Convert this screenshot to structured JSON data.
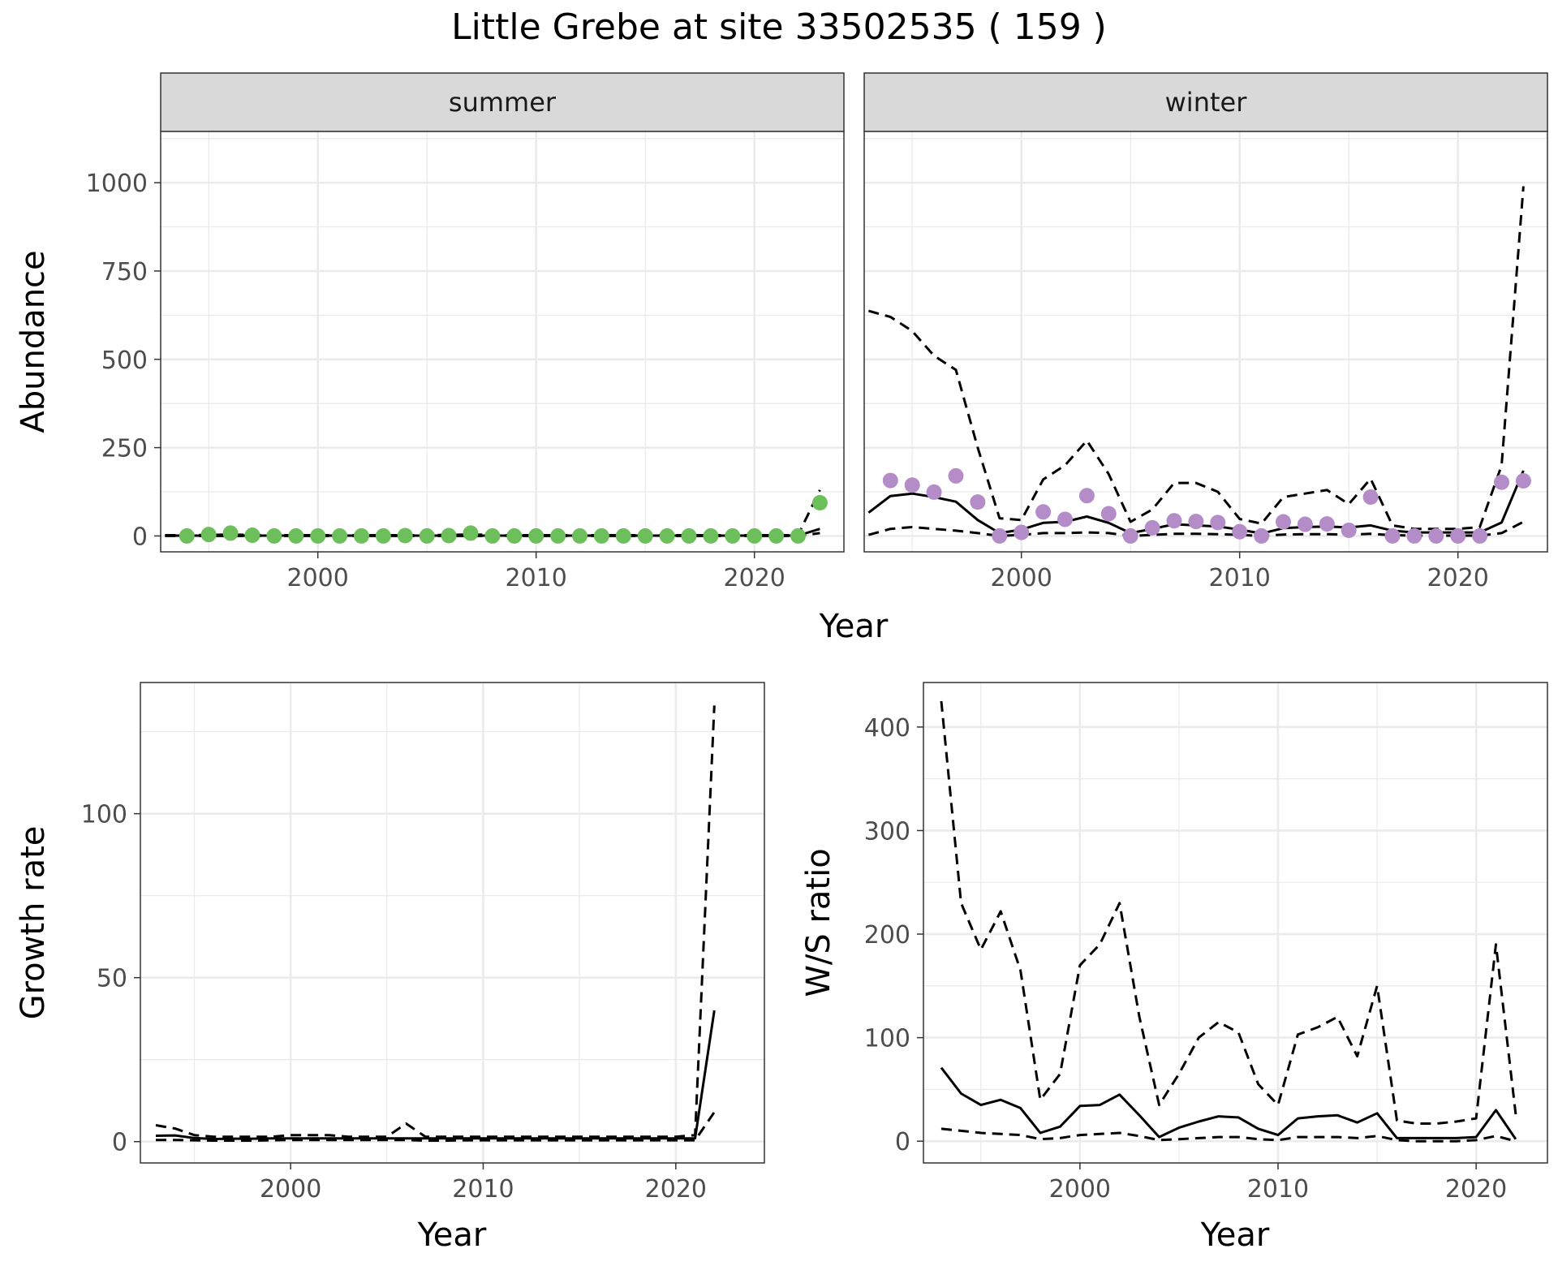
{
  "title": "Little Grebe at site 33502535 ( 159 )",
  "chart_data": [
    {
      "type": "line",
      "facet": "summer",
      "xlabel": "",
      "ylabel": "Abundance",
      "xlim": [
        1992.8,
        2024.1
      ],
      "ylim": [
        -45,
        1145
      ],
      "xticks": [
        2000,
        2010,
        2020
      ],
      "yticks": [
        0,
        250,
        500,
        750,
        1000
      ],
      "grid": true,
      "point_color": "#6dbf5b",
      "series": [
        {
          "style": "solid",
          "x": [
            1993,
            1994,
            1995,
            1996,
            1997,
            1998,
            1999,
            2000,
            2001,
            2002,
            2003,
            2004,
            2005,
            2006,
            2007,
            2008,
            2009,
            2010,
            2011,
            2012,
            2013,
            2014,
            2015,
            2016,
            2017,
            2018,
            2019,
            2020,
            2021,
            2022,
            2023
          ],
          "y": [
            1,
            1,
            1,
            1,
            1,
            1,
            1,
            1,
            1,
            1,
            1,
            1,
            1,
            1,
            1,
            1,
            1,
            1,
            1,
            1,
            1,
            1,
            1,
            1,
            1,
            1,
            1,
            1,
            1,
            1,
            20
          ]
        },
        {
          "style": "dashed",
          "x": [
            1993,
            1994,
            1995,
            1996,
            1997,
            1998,
            1999,
            2000,
            2001,
            2002,
            2003,
            2004,
            2005,
            2006,
            2007,
            2008,
            2009,
            2010,
            2011,
            2012,
            2013,
            2014,
            2015,
            2016,
            2017,
            2018,
            2019,
            2020,
            2021,
            2022,
            2023
          ],
          "y": [
            2,
            2,
            3,
            4,
            3,
            2,
            2,
            2,
            2,
            2,
            2,
            2,
            2,
            3,
            4,
            3,
            2,
            2,
            2,
            2,
            2,
            2,
            2,
            2,
            2,
            2,
            2,
            2,
            2,
            2,
            130
          ]
        },
        {
          "style": "dashed",
          "x": [
            1993,
            1994,
            1995,
            1996,
            1997,
            1998,
            1999,
            2000,
            2001,
            2002,
            2003,
            2004,
            2005,
            2006,
            2007,
            2008,
            2009,
            2010,
            2011,
            2012,
            2013,
            2014,
            2015,
            2016,
            2017,
            2018,
            2019,
            2020,
            2021,
            2022,
            2023
          ],
          "y": [
            0,
            0,
            0,
            0,
            0,
            0,
            0,
            0,
            0,
            0,
            0,
            0,
            0,
            0,
            0,
            0,
            0,
            0,
            0,
            0,
            0,
            0,
            0,
            0,
            0,
            0,
            0,
            0,
            0,
            0,
            8
          ]
        }
      ],
      "points": {
        "x": [
          1994,
          1995,
          1996,
          1997,
          1998,
          1999,
          2000,
          2001,
          2002,
          2003,
          2004,
          2005,
          2006,
          2007,
          2008,
          2009,
          2010,
          2011,
          2012,
          2013,
          2014,
          2015,
          2016,
          2017,
          2018,
          2019,
          2020,
          2021,
          2022,
          2023
        ],
        "y": [
          0,
          4,
          8,
          2,
          0,
          0,
          0,
          0,
          0,
          0,
          1,
          0,
          1,
          8,
          0,
          0,
          0,
          0,
          0,
          0,
          0,
          0,
          0,
          0,
          0,
          0,
          0,
          0,
          0,
          94
        ]
      }
    },
    {
      "type": "line",
      "facet": "winter",
      "xlabel": "",
      "ylabel": "",
      "xlim": [
        1992.8,
        2024.1
      ],
      "ylim": [
        -45,
        1145
      ],
      "xticks": [
        2000,
        2010,
        2020
      ],
      "yticks": [
        0,
        250,
        500,
        750,
        1000
      ],
      "grid": true,
      "point_color": "#b38cc8",
      "series": [
        {
          "style": "solid",
          "x": [
            1993,
            1994,
            1995,
            1996,
            1997,
            1998,
            1999,
            2000,
            2001,
            2002,
            2003,
            2004,
            2005,
            2006,
            2007,
            2008,
            2009,
            2010,
            2011,
            2012,
            2013,
            2014,
            2015,
            2016,
            2017,
            2018,
            2019,
            2020,
            2021,
            2022,
            2023
          ],
          "y": [
            66,
            113,
            120,
            110,
            97,
            45,
            8,
            18,
            37,
            40,
            55,
            37,
            8,
            20,
            33,
            30,
            27,
            18,
            7,
            22,
            25,
            27,
            24,
            30,
            15,
            10,
            10,
            10,
            10,
            38,
            185
          ]
        },
        {
          "style": "dashed",
          "x": [
            1993,
            1994,
            1995,
            1996,
            1997,
            1998,
            1999,
            2000,
            2001,
            2002,
            2003,
            2004,
            2005,
            2006,
            2007,
            2008,
            2009,
            2010,
            2011,
            2012,
            2013,
            2014,
            2015,
            2016,
            2017,
            2018,
            2019,
            2020,
            2021,
            2022,
            2023
          ],
          "y": [
            637,
            620,
            580,
            510,
            470,
            250,
            50,
            45,
            160,
            200,
            270,
            175,
            40,
            75,
            150,
            150,
            125,
            48,
            35,
            110,
            120,
            130,
            90,
            162,
            30,
            20,
            20,
            20,
            25,
            200,
            990
          ]
        },
        {
          "style": "dashed",
          "x": [
            1993,
            1994,
            1995,
            1996,
            1997,
            1998,
            1999,
            2000,
            2001,
            2002,
            2003,
            2004,
            2005,
            2006,
            2007,
            2008,
            2009,
            2010,
            2011,
            2012,
            2013,
            2014,
            2015,
            2016,
            2017,
            2018,
            2019,
            2020,
            2021,
            2022,
            2023
          ],
          "y": [
            3,
            20,
            25,
            20,
            15,
            8,
            0,
            3,
            8,
            8,
            10,
            8,
            0,
            3,
            6,
            6,
            5,
            3,
            0,
            4,
            5,
            5,
            4,
            6,
            2,
            1,
            1,
            1,
            1,
            8,
            40
          ]
        }
      ],
      "points": {
        "x": [
          1994,
          1995,
          1996,
          1997,
          1998,
          1999,
          2000,
          2001,
          2002,
          2003,
          2004,
          2005,
          2006,
          2007,
          2008,
          2009,
          2010,
          2011,
          2012,
          2013,
          2014,
          2015,
          2016,
          2017,
          2018,
          2019,
          2020,
          2021,
          2022,
          2023
        ],
        "y": [
          157,
          144,
          124,
          170,
          96,
          0,
          10,
          68,
          47,
          114,
          63,
          0,
          23,
          43,
          41,
          38,
          12,
          0,
          40,
          33,
          34,
          16,
          110,
          0,
          0,
          0,
          0,
          0,
          152,
          156
        ]
      }
    },
    {
      "type": "line",
      "xlabel": "Year",
      "ylabel": "Growth rate",
      "xlim": [
        1992.2,
        2024.6
      ],
      "ylim": [
        -6.5,
        140
      ],
      "xticks": [
        2000,
        2010,
        2020
      ],
      "yticks": [
        0,
        50,
        100
      ],
      "grid": true,
      "series": [
        {
          "style": "solid",
          "x": [
            1993,
            1994,
            1995,
            1996,
            1997,
            1998,
            1999,
            2000,
            2001,
            2002,
            2003,
            2004,
            2005,
            2006,
            2007,
            2008,
            2009,
            2010,
            2011,
            2012,
            2013,
            2014,
            2015,
            2016,
            2017,
            2018,
            2019,
            2020,
            2021,
            2022
          ],
          "y": [
            1.8,
            1.9,
            1.1,
            0.8,
            0.9,
            0.9,
            1,
            1,
            1,
            1,
            1,
            1,
            1,
            1,
            1,
            1,
            1,
            1,
            1,
            1,
            1,
            1,
            1,
            1,
            1,
            1,
            1,
            1,
            1,
            40
          ]
        },
        {
          "style": "dashed",
          "x": [
            1993,
            1994,
            1995,
            1996,
            1997,
            1998,
            1999,
            2000,
            2001,
            2002,
            2003,
            2004,
            2005,
            2006,
            2007,
            2008,
            2009,
            2010,
            2011,
            2012,
            2013,
            2014,
            2015,
            2016,
            2017,
            2018,
            2019,
            2020,
            2021,
            2022
          ],
          "y": [
            5,
            4,
            2,
            1.5,
            1.5,
            1.5,
            1.5,
            2,
            2,
            2,
            1.5,
            1.5,
            1.5,
            5.5,
            1.5,
            1.5,
            1.5,
            1.5,
            1.5,
            1.5,
            1.5,
            1.5,
            1.5,
            1.5,
            1.5,
            1.5,
            1.5,
            1.5,
            2,
            133
          ]
        },
        {
          "style": "dashed",
          "x": [
            1993,
            1994,
            1995,
            1996,
            1997,
            1998,
            1999,
            2000,
            2001,
            2002,
            2003,
            2004,
            2005,
            2006,
            2007,
            2008,
            2009,
            2010,
            2011,
            2012,
            2013,
            2014,
            2015,
            2016,
            2017,
            2018,
            2019,
            2020,
            2021,
            2022
          ],
          "y": [
            0.5,
            0.5,
            0.4,
            0.3,
            0.3,
            0.3,
            0.4,
            0.5,
            0.5,
            0.5,
            0.5,
            0.5,
            0.5,
            0.5,
            0.3,
            0.3,
            0.4,
            0.4,
            0.4,
            0.4,
            0.4,
            0.4,
            0.4,
            0.4,
            0.4,
            0.4,
            0.4,
            0.4,
            0.4,
            9
          ]
        }
      ]
    },
    {
      "type": "line",
      "xlabel": "Year",
      "ylabel": "W/S ratio",
      "xlim": [
        1992.1,
        2023.6
      ],
      "ylim": [
        -21,
        443
      ],
      "xticks": [
        2000,
        2010,
        2020
      ],
      "yticks": [
        0,
        100,
        200,
        300,
        400
      ],
      "grid": true,
      "series": [
        {
          "style": "solid",
          "x": [
            1993,
            1994,
            1995,
            1996,
            1997,
            1998,
            1999,
            2000,
            2001,
            2002,
            2003,
            2004,
            2005,
            2006,
            2007,
            2008,
            2009,
            2010,
            2011,
            2012,
            2013,
            2014,
            2015,
            2016,
            2017,
            2018,
            2019,
            2020,
            2021,
            2022
          ],
          "y": [
            71,
            46,
            35,
            40,
            32,
            8,
            14,
            34,
            35,
            45,
            25,
            4,
            13,
            19,
            24,
            23,
            12,
            6,
            22,
            24,
            25,
            18,
            27,
            3,
            3,
            3,
            3,
            4,
            30,
            2
          ]
        },
        {
          "style": "dashed",
          "x": [
            1993,
            1994,
            1995,
            1996,
            1997,
            1998,
            1999,
            2000,
            2001,
            2002,
            2003,
            2004,
            2005,
            2006,
            2007,
            2008,
            2009,
            2010,
            2011,
            2012,
            2013,
            2014,
            2015,
            2016,
            2017,
            2018,
            2019,
            2020,
            2021,
            2022
          ],
          "y": [
            425,
            230,
            185,
            222,
            165,
            40,
            65,
            170,
            190,
            230,
            120,
            35,
            65,
            100,
            115,
            105,
            55,
            35,
            103,
            110,
            120,
            82,
            150,
            20,
            17,
            17,
            19,
            22,
            190,
            26
          ]
        },
        {
          "style": "dashed",
          "x": [
            1993,
            1994,
            1995,
            1996,
            1997,
            1998,
            1999,
            2000,
            2001,
            2002,
            2003,
            2004,
            2005,
            2006,
            2007,
            2008,
            2009,
            2010,
            2011,
            2012,
            2013,
            2014,
            2015,
            2016,
            2017,
            2018,
            2019,
            2020,
            2021,
            2022
          ],
          "y": [
            12,
            10,
            8,
            7,
            6,
            2,
            3,
            6,
            7,
            8,
            5,
            1,
            2,
            3,
            4,
            4,
            2,
            1,
            4,
            4,
            4,
            3,
            5,
            1,
            0,
            0,
            0,
            1,
            5,
            0
          ]
        }
      ]
    }
  ],
  "facet_strips": [
    "summer",
    "winter"
  ],
  "shared_xlabel_top": "Year"
}
